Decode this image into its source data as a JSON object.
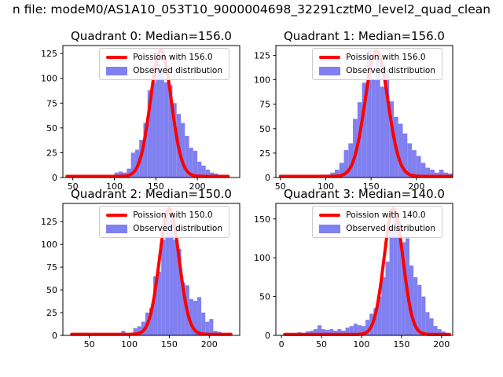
{
  "figure_title": "n file: modeM0/AS1A10_053T10_9000004698_32291cztM0_level2_quad_clean",
  "colors": {
    "curve": "#ff0000",
    "bar": "#8080f0",
    "frame": "#000000",
    "legend_border": "#cccccc",
    "text": "#000000"
  },
  "chart_data": [
    {
      "type": "bar",
      "title": "Quadrant 0: Median=156.0",
      "median": 156.0,
      "legend": [
        "Poission with 156.0",
        "Observed distribution"
      ],
      "legend_position": "upper right",
      "xlim": [
        38,
        251
      ],
      "ylim": [
        0,
        133
      ],
      "xticks": [
        50,
        100,
        150,
        200
      ],
      "yticks": [
        0,
        25,
        50,
        75,
        100,
        125
      ],
      "bins_start": 45,
      "bin_width": 5,
      "counts": [
        1,
        2,
        1,
        1,
        1,
        1,
        2,
        1,
        1,
        1,
        2,
        5,
        6,
        5,
        9,
        25,
        28,
        38,
        55,
        88,
        96,
        115,
        110,
        96,
        93,
        75,
        64,
        55,
        42,
        30,
        27,
        16,
        12,
        8,
        5,
        4,
        2,
        2
      ],
      "poisson": {
        "mean": 156,
        "sigma": 12.5,
        "peak": 127,
        "base": 1.2
      },
      "curve_range": [
        43,
        237
      ]
    },
    {
      "type": "bar",
      "title": "Quadrant 1: Median=156.0",
      "median": 156.0,
      "legend": [
        "Poission with 156.0",
        "Observed distribution"
      ],
      "legend_position": "upper right",
      "xlim": [
        45,
        240
      ],
      "ylim": [
        0,
        135
      ],
      "xticks": [
        50,
        100,
        150,
        200
      ],
      "yticks": [
        0,
        25,
        50,
        75,
        100,
        125
      ],
      "bins_start": 50,
      "bin_width": 5,
      "counts": [
        2,
        1,
        1,
        1,
        1,
        2,
        1,
        2,
        2,
        3,
        3,
        5,
        8,
        15,
        28,
        35,
        60,
        77,
        97,
        130,
        100,
        122,
        93,
        112,
        78,
        62,
        55,
        45,
        35,
        28,
        22,
        15,
        10,
        8,
        5,
        8,
        5,
        4
      ],
      "poisson": {
        "mean": 156,
        "sigma": 12.5,
        "peak": 128.5,
        "base": 1.2
      },
      "curve_range": [
        50,
        238
      ]
    },
    {
      "type": "bar",
      "title": "Quadrant 2: Median=150.0",
      "median": 150.0,
      "legend": [
        "Poission with 150.0",
        "Observed distribution"
      ],
      "legend_position": "upper right",
      "xlim": [
        17,
        238
      ],
      "ylim": [
        0,
        145
      ],
      "xticks": [
        50,
        100,
        150,
        200
      ],
      "yticks": [
        0,
        25,
        50,
        75,
        100,
        125
      ],
      "bins_start": 30,
      "bin_width": 5,
      "counts": [
        1,
        1,
        3,
        2,
        1,
        1,
        1,
        1,
        1,
        1,
        1,
        2,
        5,
        2,
        3,
        8,
        10,
        15,
        25,
        30,
        65,
        70,
        105,
        130,
        128,
        105,
        95,
        58,
        55,
        40,
        38,
        42,
        25,
        15,
        18,
        5,
        4,
        2,
        2
      ],
      "poisson": {
        "mean": 150,
        "sigma": 12.2,
        "peak": 138,
        "base": 1.2
      },
      "curve_range": [
        28,
        227
      ]
    },
    {
      "type": "bar",
      "title": "Quadrant 3: Median=140.0",
      "median": 140.0,
      "legend": [
        "Poission with 140.0",
        "Observed distribution"
      ],
      "legend_position": "upper right",
      "xlim": [
        -7,
        214
      ],
      "ylim": [
        0,
        170
      ],
      "xticks": [
        0,
        50,
        100,
        150,
        200
      ],
      "yticks": [
        0,
        50,
        100,
        150
      ],
      "bins_start": 10,
      "bin_width": 5,
      "counts": [
        2,
        3,
        4,
        3,
        5,
        6,
        8,
        13,
        8,
        7,
        8,
        6,
        8,
        6,
        10,
        12,
        15,
        13,
        12,
        20,
        28,
        35,
        50,
        75,
        95,
        140,
        158,
        148,
        120,
        125,
        90,
        75,
        65,
        50,
        30,
        22,
        12,
        8,
        5,
        3
      ],
      "poisson": {
        "mean": 140,
        "sigma": 11.8,
        "peak": 162,
        "base": 1.2
      },
      "curve_range": [
        4,
        210
      ]
    }
  ]
}
